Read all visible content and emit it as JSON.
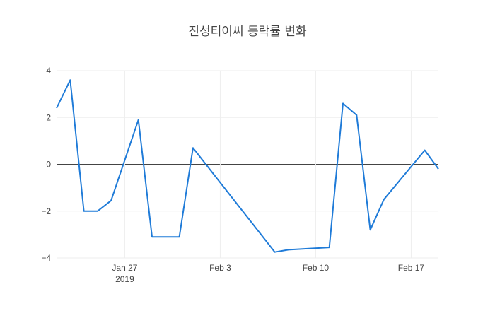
{
  "chart_data": {
    "type": "line",
    "title": "진성티이씨 등락률 변화",
    "xlabel": "",
    "ylabel": "",
    "xlim": [
      "2019-01-22",
      "2019-02-19"
    ],
    "ylim": [
      -4,
      4
    ],
    "x_ticks": [
      {
        "date": "2019-01-27",
        "label": "Jan 27",
        "sublabel": "2019"
      },
      {
        "date": "2019-02-03",
        "label": "Feb 3",
        "sublabel": ""
      },
      {
        "date": "2019-02-10",
        "label": "Feb 10",
        "sublabel": ""
      },
      {
        "date": "2019-02-17",
        "label": "Feb 17",
        "sublabel": ""
      }
    ],
    "y_ticks": [
      4,
      2,
      0,
      -2,
      -4
    ],
    "grid": true,
    "line_color": "#1f7bd8",
    "series": [
      {
        "x": [
          "2019-01-22",
          "2019-01-23",
          "2019-01-24",
          "2019-01-25",
          "2019-01-26",
          "2019-01-28",
          "2019-01-29",
          "2019-01-30",
          "2019-01-31",
          "2019-02-01",
          "2019-02-07",
          "2019-02-08",
          "2019-02-11",
          "2019-02-12",
          "2019-02-13",
          "2019-02-14",
          "2019-02-15",
          "2019-02-18",
          "2019-02-19"
        ],
        "values": [
          2.4,
          3.6,
          -2.0,
          -2.0,
          -1.55,
          1.9,
          -3.1,
          -3.1,
          -3.1,
          0.7,
          -3.75,
          -3.65,
          -3.55,
          2.6,
          2.1,
          -2.8,
          -1.5,
          0.6,
          -0.2
        ]
      }
    ]
  }
}
